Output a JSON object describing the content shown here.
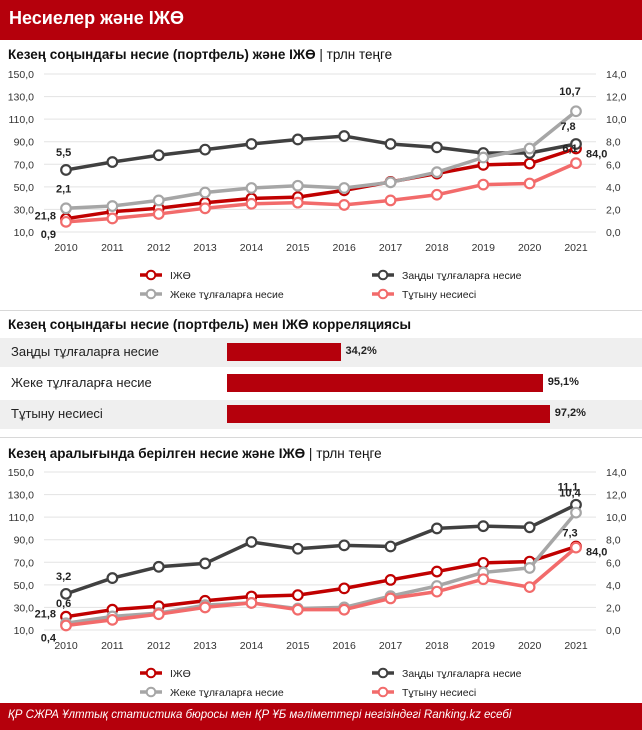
{
  "header": {
    "title": "Несиелер және ІЖӨ"
  },
  "section1": {
    "title": "Кезең соңындағы несие (портфель) және ІЖӨ",
    "unit": "трлн теңге"
  },
  "section2": {
    "title": "Кезең соңындағы несие (портфель) мен ІЖӨ корреляциясы"
  },
  "section3": {
    "title": "Кезең аралығында берілген несие және ІЖӨ",
    "unit": "трлн теңге"
  },
  "footer": {
    "text": "ҚР СЖРА Ұлттық статистика бюросы мен ҚР ҰБ мәліметтері негізіндегі Ranking.kz есебі"
  },
  "colors": {
    "brand": "#b5000c",
    "gdp": "#c00000",
    "legal": "#404040",
    "individuals": "#a6a6a6",
    "consumer": "#f26b6b"
  },
  "chart_data": [
    {
      "type": "line",
      "x": [
        "2010",
        "2011",
        "2012",
        "2013",
        "2014",
        "2015",
        "2016",
        "2017",
        "2018",
        "2019",
        "2020",
        "2021"
      ],
      "ylim_left": [
        10,
        150
      ],
      "yticks_left": [
        "10,0",
        "30,0",
        "50,0",
        "70,0",
        "90,0",
        "110,0",
        "130,0",
        "150,0"
      ],
      "ylim_right": [
        0,
        14
      ],
      "yticks_right": [
        "0,0",
        "2,0",
        "4,0",
        "6,0",
        "8,0",
        "10,0",
        "12,0",
        "14,0"
      ],
      "legend_position": "bottom",
      "series": [
        {
          "name": "ІЖӨ",
          "axis": "left",
          "color_key": "gdp",
          "values": [
            21.8,
            28.0,
            31.0,
            35.9,
            39.7,
            40.9,
            46.9,
            54.4,
            61.8,
            69.5,
            70.6,
            84.0
          ],
          "labels": [
            {
              "index": 0,
              "text": "21,8"
            },
            {
              "index": 11,
              "text": "84,0"
            }
          ]
        },
        {
          "name": "Заңды тұлғаларға несие",
          "axis": "right",
          "color_key": "legal",
          "values": [
            5.5,
            6.2,
            6.8,
            7.3,
            7.8,
            8.2,
            8.5,
            7.8,
            7.5,
            7.0,
            7.0,
            7.8
          ],
          "labels": [
            {
              "index": 0,
              "text": "5,5"
            },
            {
              "index": 11,
              "text": "7,8"
            }
          ]
        },
        {
          "name": "Жеке тұлғаларға несие",
          "axis": "right",
          "color_key": "individuals",
          "values": [
            2.1,
            2.3,
            2.8,
            3.5,
            3.9,
            4.1,
            3.9,
            4.4,
            5.3,
            6.6,
            7.4,
            10.7
          ],
          "labels": [
            {
              "index": 0,
              "text": "2,1"
            },
            {
              "index": 11,
              "text": "10,7"
            }
          ]
        },
        {
          "name": "Тұтыну несиесі",
          "axis": "right",
          "color_key": "consumer",
          "values": [
            0.9,
            1.2,
            1.6,
            2.1,
            2.5,
            2.6,
            2.4,
            2.8,
            3.3,
            4.2,
            4.3,
            6.1
          ],
          "labels": [
            {
              "index": 0,
              "text": "0,9"
            },
            {
              "index": 11,
              "text": "6,1"
            }
          ]
        }
      ]
    },
    {
      "type": "bar",
      "orientation": "horizontal",
      "categories": [
        "Заңды тұлғаларға несие",
        "Жеке тұлғаларға несие",
        "Тұтыну несиесі"
      ],
      "values": [
        34.2,
        95.1,
        97.2
      ],
      "value_labels": [
        "34,2%",
        "95,1%",
        "97,2%"
      ]
    },
    {
      "type": "line",
      "x": [
        "2010",
        "2011",
        "2012",
        "2013",
        "2014",
        "2015",
        "2016",
        "2017",
        "2018",
        "2019",
        "2020",
        "2021"
      ],
      "ylim_left": [
        10,
        150
      ],
      "yticks_left": [
        "10,0",
        "30,0",
        "50,0",
        "70,0",
        "90,0",
        "110,0",
        "130,0",
        "150,0"
      ],
      "ylim_right": [
        0,
        14
      ],
      "yticks_right": [
        "0,0",
        "2,0",
        "4,0",
        "6,0",
        "8,0",
        "10,0",
        "12,0",
        "14,0"
      ],
      "legend_position": "bottom",
      "series": [
        {
          "name": "ІЖӨ",
          "axis": "left",
          "color_key": "gdp",
          "values": [
            21.8,
            28.0,
            31.0,
            35.9,
            39.7,
            40.9,
            46.9,
            54.4,
            61.8,
            69.5,
            70.6,
            84.0
          ],
          "labels": [
            {
              "index": 0,
              "text": "21,8"
            },
            {
              "index": 11,
              "text": "84,0"
            }
          ]
        },
        {
          "name": "Заңды тұлғаларға несие",
          "axis": "right",
          "color_key": "legal",
          "values": [
            3.2,
            4.6,
            5.6,
            5.9,
            7.8,
            7.2,
            7.5,
            7.4,
            9.0,
            9.2,
            9.1,
            11.1
          ],
          "labels": [
            {
              "index": 0,
              "text": "3,2"
            },
            {
              "index": 11,
              "text": "11,1"
            }
          ]
        },
        {
          "name": "Жеке тұлғаларға несие",
          "axis": "right",
          "color_key": "individuals",
          "values": [
            0.6,
            1.2,
            1.5,
            2.2,
            2.4,
            1.9,
            2.0,
            3.0,
            3.9,
            5.1,
            5.5,
            10.4
          ],
          "labels": [
            {
              "index": 0,
              "text": "0,6"
            },
            {
              "index": 11,
              "text": "10,4"
            }
          ]
        },
        {
          "name": "Тұтыну несиесі",
          "axis": "right",
          "color_key": "consumer",
          "values": [
            0.4,
            0.9,
            1.4,
            2.0,
            2.4,
            1.8,
            1.8,
            2.8,
            3.4,
            4.5,
            3.8,
            7.3
          ],
          "labels": [
            {
              "index": 0,
              "text": "0,4"
            },
            {
              "index": 11,
              "text": "7,3"
            }
          ]
        }
      ]
    }
  ]
}
